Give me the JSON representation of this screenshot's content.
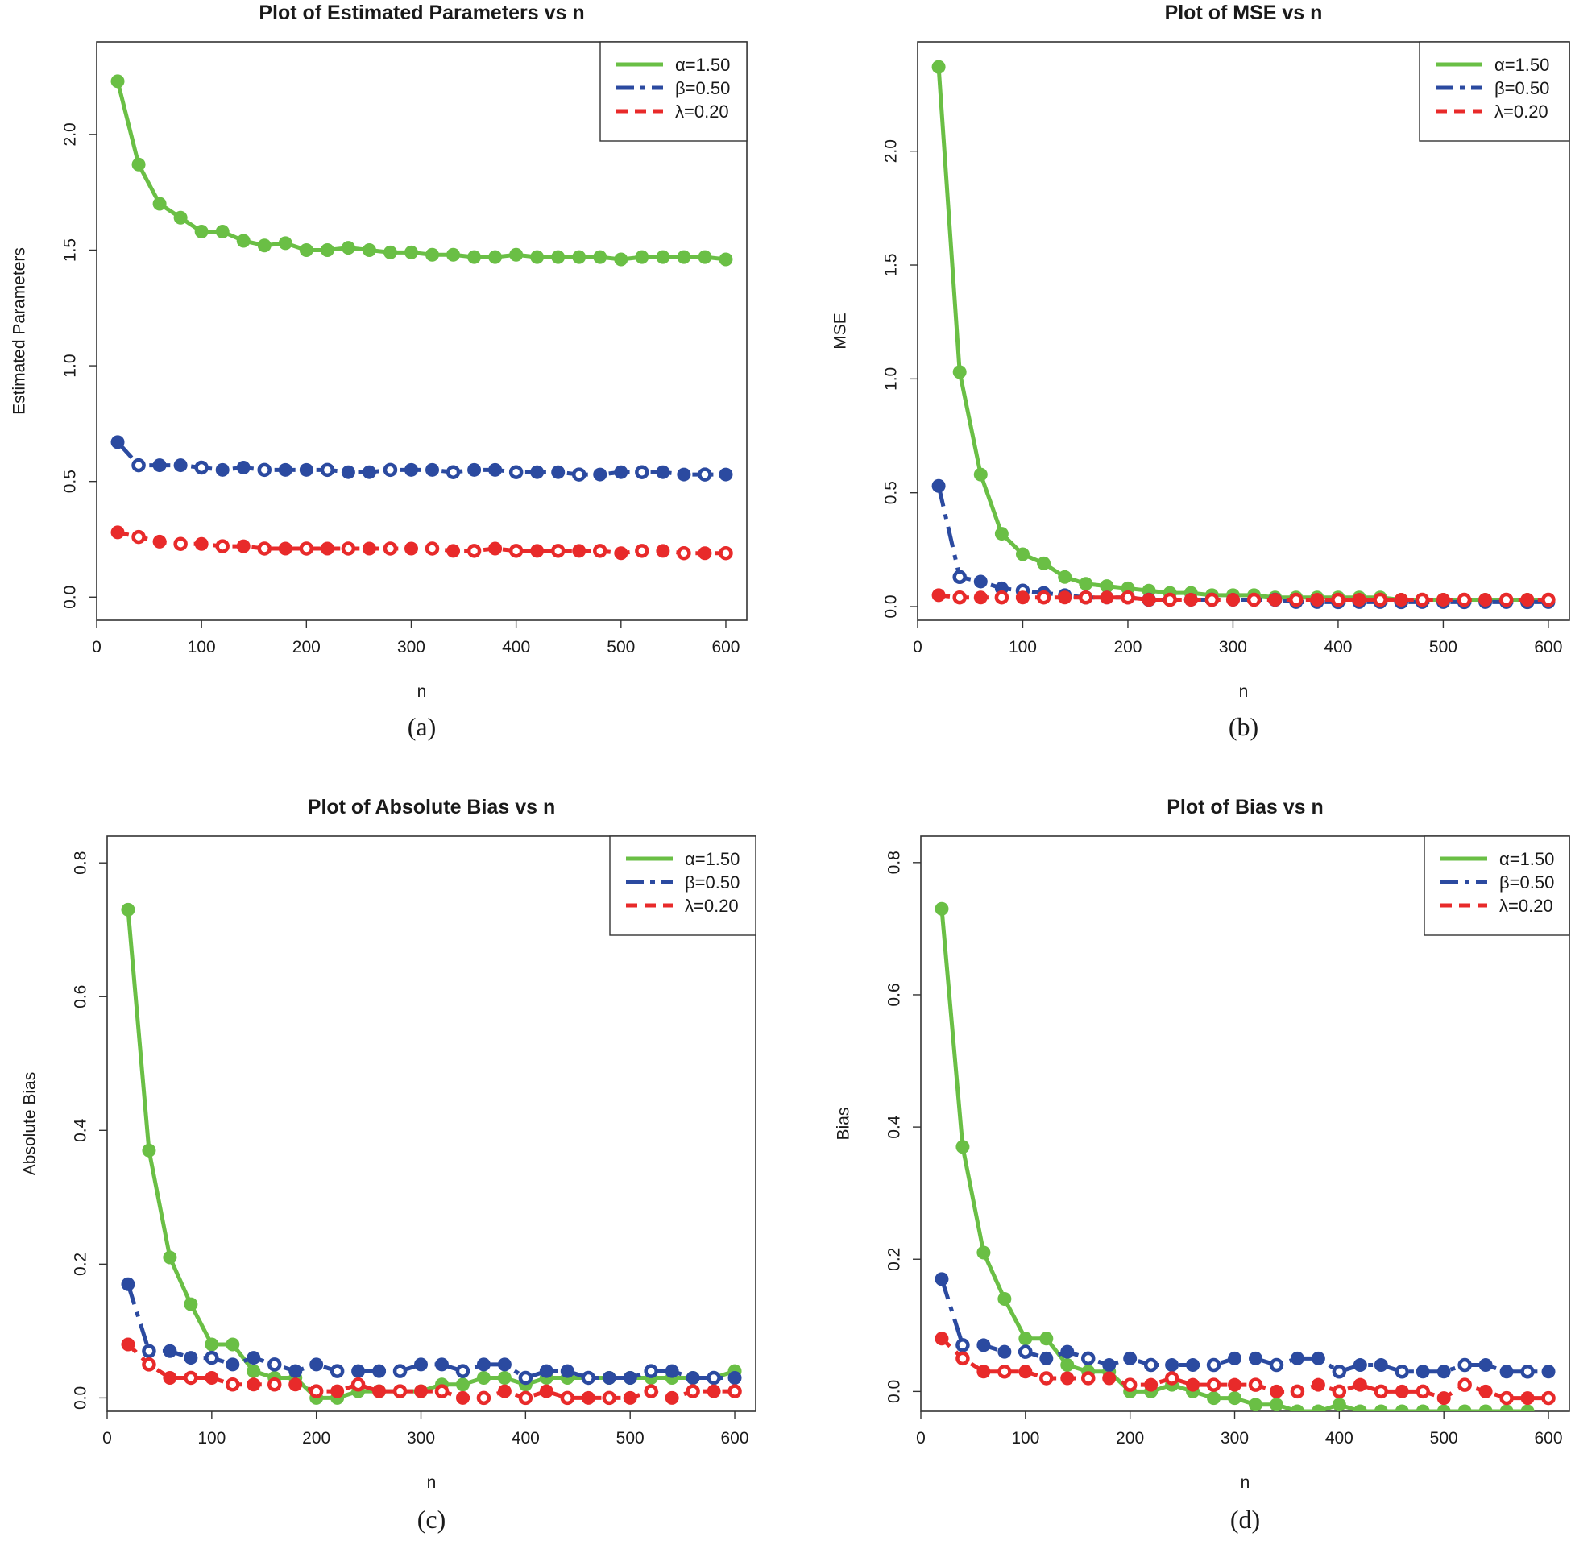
{
  "colors": {
    "alpha": "#6abf45",
    "beta": "#2b4aa0",
    "lambda": "#e82a2a",
    "frame": "#333333"
  },
  "chart_data": [
    {
      "type": "line",
      "caption": "(a)",
      "title": "Plot of Estimated Parameters vs n",
      "xlabel": "n",
      "ylabel": "Estimated Parameters",
      "xlim": [
        0,
        620
      ],
      "ylim": [
        -0.1,
        2.4
      ],
      "xticks": [
        0,
        100,
        200,
        300,
        400,
        500,
        600
      ],
      "yticks": [
        0.0,
        0.5,
        1.0,
        1.5,
        2.0
      ],
      "ytick_labels": [
        "0.0",
        "0.5",
        "1.0",
        "1.5",
        "2.0"
      ],
      "x": [
        20,
        40,
        60,
        80,
        100,
        120,
        140,
        160,
        180,
        200,
        220,
        240,
        260,
        280,
        300,
        320,
        340,
        360,
        380,
        400,
        420,
        440,
        460,
        480,
        500,
        520,
        540,
        560,
        580,
        600
      ],
      "series": [
        {
          "name": "α=1.50",
          "key": "alpha",
          "values": [
            2.23,
            1.87,
            1.7,
            1.64,
            1.58,
            1.58,
            1.54,
            1.52,
            1.53,
            1.5,
            1.5,
            1.51,
            1.5,
            1.49,
            1.49,
            1.48,
            1.48,
            1.47,
            1.47,
            1.48,
            1.47,
            1.47,
            1.47,
            1.47,
            1.46,
            1.47,
            1.47,
            1.47,
            1.47,
            1.46
          ]
        },
        {
          "name": "β=0.50",
          "key": "beta",
          "values": [
            0.67,
            0.57,
            0.57,
            0.57,
            0.56,
            0.55,
            0.56,
            0.55,
            0.55,
            0.55,
            0.55,
            0.54,
            0.54,
            0.55,
            0.55,
            0.55,
            0.54,
            0.55,
            0.55,
            0.54,
            0.54,
            0.54,
            0.53,
            0.53,
            0.54,
            0.54,
            0.54,
            0.53,
            0.53,
            0.53
          ]
        },
        {
          "name": "λ=0.20",
          "key": "lambda",
          "values": [
            0.28,
            0.26,
            0.24,
            0.23,
            0.23,
            0.22,
            0.22,
            0.21,
            0.21,
            0.21,
            0.21,
            0.21,
            0.21,
            0.21,
            0.21,
            0.21,
            0.2,
            0.2,
            0.21,
            0.2,
            0.2,
            0.2,
            0.2,
            0.2,
            0.19,
            0.2,
            0.2,
            0.19,
            0.19,
            0.19
          ]
        }
      ]
    },
    {
      "type": "line",
      "caption": "(b)",
      "title": "Plot of MSE vs n",
      "xlabel": "n",
      "ylabel": "MSE",
      "xlim": [
        0,
        620
      ],
      "ylim": [
        -0.06,
        2.48
      ],
      "xticks": [
        0,
        100,
        200,
        300,
        400,
        500,
        600
      ],
      "yticks": [
        0.0,
        0.5,
        1.0,
        1.5,
        2.0
      ],
      "ytick_labels": [
        "0.0",
        "0.5",
        "1.0",
        "1.5",
        "2.0"
      ],
      "x": [
        20,
        40,
        60,
        80,
        100,
        120,
        140,
        160,
        180,
        200,
        220,
        240,
        260,
        280,
        300,
        320,
        340,
        360,
        380,
        400,
        420,
        440,
        460,
        480,
        500,
        520,
        540,
        560,
        580,
        600
      ],
      "series": [
        {
          "name": "α=1.50",
          "key": "alpha",
          "values": [
            2.37,
            1.03,
            0.58,
            0.32,
            0.23,
            0.19,
            0.13,
            0.1,
            0.09,
            0.08,
            0.07,
            0.06,
            0.06,
            0.05,
            0.05,
            0.05,
            0.04,
            0.04,
            0.04,
            0.04,
            0.04,
            0.04,
            0.03,
            0.03,
            0.03,
            0.03,
            0.03,
            0.03,
            0.03,
            0.03
          ]
        },
        {
          "name": "β=0.50",
          "key": "beta",
          "values": [
            0.53,
            0.13,
            0.11,
            0.08,
            0.07,
            0.06,
            0.05,
            0.04,
            0.04,
            0.04,
            0.03,
            0.03,
            0.03,
            0.03,
            0.03,
            0.03,
            0.03,
            0.02,
            0.02,
            0.02,
            0.02,
            0.02,
            0.02,
            0.02,
            0.02,
            0.02,
            0.02,
            0.02,
            0.02,
            0.02
          ]
        },
        {
          "name": "λ=0.20",
          "key": "lambda",
          "values": [
            0.05,
            0.04,
            0.04,
            0.04,
            0.04,
            0.04,
            0.04,
            0.04,
            0.04,
            0.04,
            0.03,
            0.03,
            0.03,
            0.03,
            0.03,
            0.03,
            0.03,
            0.03,
            0.03,
            0.03,
            0.03,
            0.03,
            0.03,
            0.03,
            0.03,
            0.03,
            0.03,
            0.03,
            0.03,
            0.03
          ]
        }
      ]
    },
    {
      "type": "line",
      "caption": "(c)",
      "title": "Plot of Absolute Bias vs n",
      "xlabel": "n",
      "ylabel": "Absolute Bias",
      "xlim": [
        0,
        620
      ],
      "ylim": [
        -0.02,
        0.84
      ],
      "xticks": [
        0,
        100,
        200,
        300,
        400,
        500,
        600
      ],
      "yticks": [
        0.0,
        0.2,
        0.4,
        0.6,
        0.8
      ],
      "ytick_labels": [
        "0.0",
        "0.2",
        "0.4",
        "0.6",
        "0.8"
      ],
      "x": [
        20,
        40,
        60,
        80,
        100,
        120,
        140,
        160,
        180,
        200,
        220,
        240,
        260,
        280,
        300,
        320,
        340,
        360,
        380,
        400,
        420,
        440,
        460,
        480,
        500,
        520,
        540,
        560,
        580,
        600
      ],
      "series": [
        {
          "name": "α=1.50",
          "key": "alpha",
          "values": [
            0.73,
            0.37,
            0.21,
            0.14,
            0.08,
            0.08,
            0.04,
            0.03,
            0.03,
            0.0,
            0.0,
            0.01,
            0.01,
            0.01,
            0.01,
            0.02,
            0.02,
            0.03,
            0.03,
            0.02,
            0.03,
            0.03,
            0.03,
            0.03,
            0.03,
            0.03,
            0.03,
            0.03,
            0.03,
            0.04
          ]
        },
        {
          "name": "β=0.50",
          "key": "beta",
          "values": [
            0.17,
            0.07,
            0.07,
            0.06,
            0.06,
            0.05,
            0.06,
            0.05,
            0.04,
            0.05,
            0.04,
            0.04,
            0.04,
            0.04,
            0.05,
            0.05,
            0.04,
            0.05,
            0.05,
            0.03,
            0.04,
            0.04,
            0.03,
            0.03,
            0.03,
            0.04,
            0.04,
            0.03,
            0.03,
            0.03
          ]
        },
        {
          "name": "λ=0.20",
          "key": "lambda",
          "values": [
            0.08,
            0.05,
            0.03,
            0.03,
            0.03,
            0.02,
            0.02,
            0.02,
            0.02,
            0.01,
            0.01,
            0.02,
            0.01,
            0.01,
            0.01,
            0.01,
            0.0,
            0.0,
            0.01,
            0.0,
            0.01,
            0.0,
            0.0,
            0.0,
            0.0,
            0.01,
            0.0,
            0.01,
            0.01,
            0.01
          ]
        }
      ]
    },
    {
      "type": "line",
      "caption": "(d)",
      "title": "Plot of Bias vs n",
      "xlabel": "n",
      "ylabel": "Bias",
      "xlim": [
        0,
        620
      ],
      "ylim": [
        -0.03,
        0.84
      ],
      "xticks": [
        0,
        100,
        200,
        300,
        400,
        500,
        600
      ],
      "yticks": [
        0.0,
        0.2,
        0.4,
        0.6,
        0.8
      ],
      "ytick_labels": [
        "0.0",
        "0.2",
        "0.4",
        "0.6",
        "0.8"
      ],
      "x": [
        20,
        40,
        60,
        80,
        100,
        120,
        140,
        160,
        180,
        200,
        220,
        240,
        260,
        280,
        300,
        320,
        340,
        360,
        380,
        400,
        420,
        440,
        460,
        480,
        500,
        520,
        540,
        560,
        580,
        600
      ],
      "series": [
        {
          "name": "α=1.50",
          "key": "alpha",
          "values": [
            0.73,
            0.37,
            0.21,
            0.14,
            0.08,
            0.08,
            0.04,
            0.03,
            0.03,
            0.0,
            0.0,
            0.01,
            0.0,
            -0.01,
            -0.01,
            -0.02,
            -0.02,
            -0.03,
            -0.03,
            -0.02,
            -0.03,
            -0.03,
            -0.03,
            -0.03,
            -0.03,
            -0.03,
            -0.03,
            -0.03,
            -0.03,
            -0.04
          ]
        },
        {
          "name": "β=0.50",
          "key": "beta",
          "values": [
            0.17,
            0.07,
            0.07,
            0.06,
            0.06,
            0.05,
            0.06,
            0.05,
            0.04,
            0.05,
            0.04,
            0.04,
            0.04,
            0.04,
            0.05,
            0.05,
            0.04,
            0.05,
            0.05,
            0.03,
            0.04,
            0.04,
            0.03,
            0.03,
            0.03,
            0.04,
            0.04,
            0.03,
            0.03,
            0.03
          ]
        },
        {
          "name": "λ=0.20",
          "key": "lambda",
          "values": [
            0.08,
            0.05,
            0.03,
            0.03,
            0.03,
            0.02,
            0.02,
            0.02,
            0.02,
            0.01,
            0.01,
            0.02,
            0.01,
            0.01,
            0.01,
            0.01,
            0.0,
            0.0,
            0.01,
            0.0,
            0.01,
            0.0,
            0.0,
            0.0,
            -0.01,
            0.01,
            0.0,
            -0.01,
            -0.01,
            -0.01
          ]
        }
      ]
    }
  ]
}
